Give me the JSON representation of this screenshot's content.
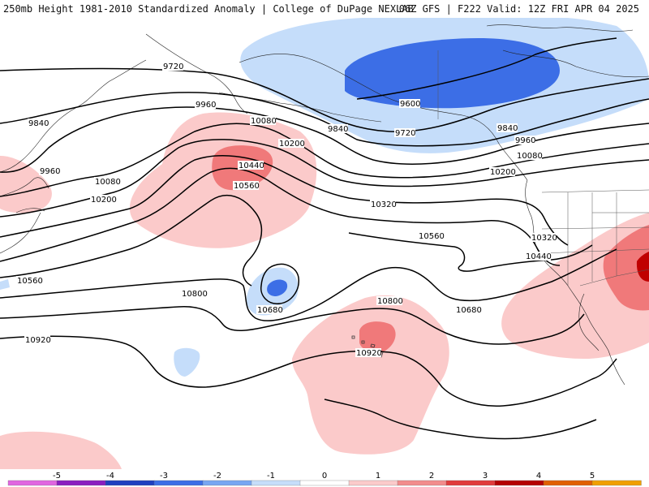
{
  "header": {
    "left_title": "250mb Height 1981-2010 Standardized Anomaly | College of DuPage NEXLAB",
    "right_title": "06Z GFS | F222 Valid: 12Z FRI APR 04 2025"
  },
  "contour_labels": [
    "9720",
    "9960",
    "9840",
    "10080",
    "10200",
    "10440",
    "10560",
    "10320",
    "9600",
    "9720",
    "9840",
    "9960",
    "10080",
    "10200",
    "10320",
    "10440",
    "10560",
    "10680",
    "10800",
    "10680",
    "10560",
    "10800",
    "10920",
    "10920",
    "9840",
    "9960",
    "10080",
    "10200"
  ],
  "colorbar": {
    "ticks": [
      "-5",
      "-4",
      "-3",
      "-2",
      "-1",
      "0",
      "1",
      "2",
      "3",
      "4",
      "5"
    ],
    "colors": [
      "#e066e0",
      "#8a1fbf",
      "#1f3fbf",
      "#3c6ee6",
      "#78a6f2",
      "#c5ddfa",
      "#ffffff",
      "#fbcaca",
      "#f28c8c",
      "#e03c3c",
      "#b40000",
      "#e06000",
      "#f0a000"
    ]
  },
  "anomaly_colors": {
    "deep_blue": "#3c6ee6",
    "light_blue": "#c5ddfa",
    "light_red": "#fbcaca",
    "mid_red": "#f0797a",
    "dark_red": "#c00000"
  }
}
